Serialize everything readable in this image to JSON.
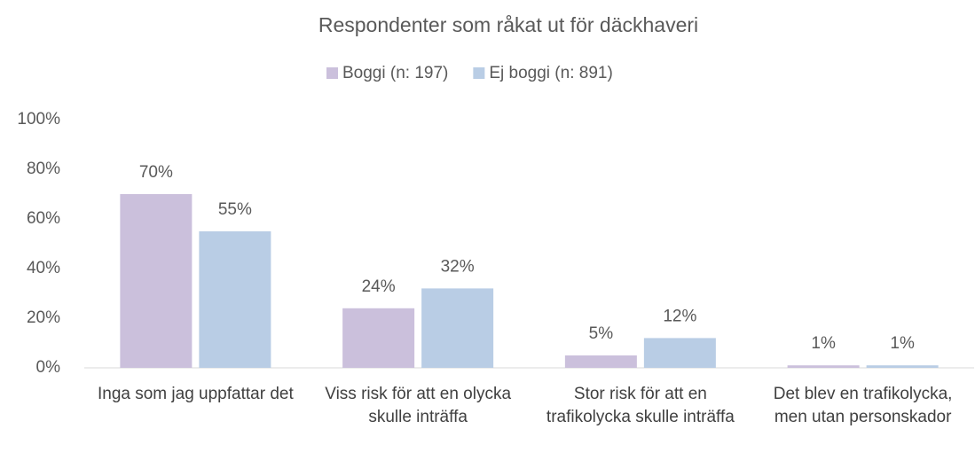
{
  "chart_data": {
    "type": "bar",
    "title": "Respondenter som råkat ut för däckhaveri",
    "categories": [
      "Inga som jag uppfattar det",
      "Viss risk för att en olycka skulle inträffa",
      "Stor risk för att en trafikolycka skulle inträffa",
      "Det blev en trafikolycka, men utan personskador"
    ],
    "series": [
      {
        "name": "Boggi (n: 197)",
        "color": "#cbc0dc",
        "values": [
          70,
          24,
          5,
          1
        ],
        "value_labels": [
          "70%",
          "24%",
          "5%",
          "1%"
        ]
      },
      {
        "name": "Ej boggi (n: 891)",
        "color": "#b9cde5",
        "values": [
          55,
          32,
          12,
          1
        ],
        "value_labels": [
          "55%",
          "32%",
          "12%",
          "1%"
        ]
      }
    ],
    "ylim": [
      0,
      100
    ],
    "yticks": [
      {
        "value": 0,
        "label": "0%"
      },
      {
        "value": 20,
        "label": "20%"
      },
      {
        "value": 40,
        "label": "40%"
      },
      {
        "value": 60,
        "label": "60%"
      },
      {
        "value": 80,
        "label": "80%"
      },
      {
        "value": 100,
        "label": "100%"
      }
    ],
    "grid": false,
    "legend": "top"
  }
}
